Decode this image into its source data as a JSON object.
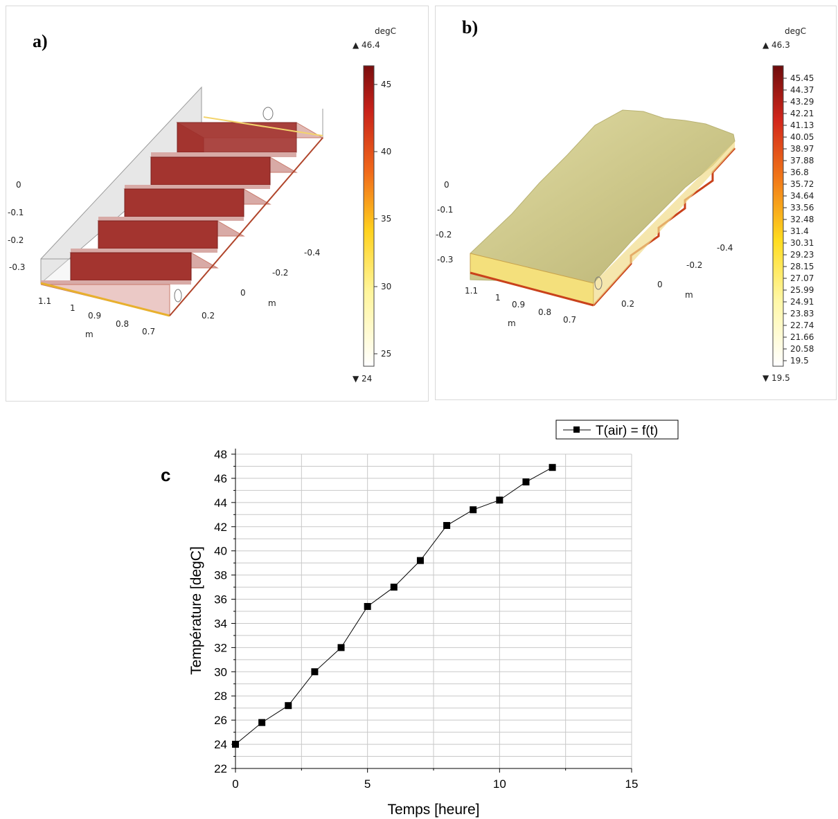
{
  "panel_a": {
    "label": "a)",
    "unit": "degC",
    "max_label": "▲ 46.4",
    "min_label": "▼ 24",
    "colorbar_ticks": [
      "45",
      "40",
      "35",
      "30",
      "25"
    ],
    "axis_labels_z": [
      "0",
      "-0.1",
      "-0.2",
      "-0.3"
    ],
    "axis_labels_x": [
      "1.1",
      "1",
      "0.9",
      "0.8",
      "0.7"
    ],
    "x_unit": "m",
    "axis_labels_y": [
      "0.2",
      "0",
      "-0.2",
      "-0.4"
    ],
    "y_unit": "m"
  },
  "panel_b": {
    "label": "b)",
    "unit": "degC",
    "max_label": "▲ 46.3",
    "min_label": "▼ 19.5",
    "colorbar_ticks": [
      "45.45",
      "44.37",
      "43.29",
      "42.21",
      "41.13",
      "40.05",
      "38.97",
      "37.88",
      "36.8",
      "35.72",
      "34.64",
      "33.56",
      "32.48",
      "31.4",
      "30.31",
      "29.23",
      "28.15",
      "27.07",
      "25.99",
      "24.91",
      "23.83",
      "22.74",
      "21.66",
      "20.58",
      "19.5"
    ],
    "axis_labels_z": [
      "0",
      "-0.1",
      "-0.2",
      "-0.3"
    ],
    "axis_labels_x": [
      "1.1",
      "1",
      "0.9",
      "0.8",
      "0.7"
    ],
    "x_unit": "m",
    "axis_labels_y": [
      "0.2",
      "0",
      "-0.2",
      "-0.4"
    ],
    "y_unit": "m"
  },
  "chart_data": {
    "type": "line",
    "panel_label": "c",
    "xlabel": "Temps [heure]",
    "ylabel": "Température [degC]",
    "xlim": [
      0,
      15
    ],
    "ylim": [
      22,
      48
    ],
    "xticks": [
      0,
      5,
      10,
      15
    ],
    "yticks": [
      22,
      24,
      26,
      28,
      30,
      32,
      34,
      36,
      38,
      40,
      42,
      44,
      46,
      48
    ],
    "grid": true,
    "legend_position": "top-right",
    "series": [
      {
        "name": "T(air) = f(t)",
        "x": [
          0,
          1,
          2,
          3,
          4,
          5,
          6,
          7,
          8,
          9,
          10,
          11,
          12
        ],
        "y": [
          24.0,
          25.8,
          27.2,
          30.0,
          32.0,
          35.4,
          37.0,
          39.2,
          42.1,
          43.4,
          44.2,
          45.7,
          46.9
        ]
      }
    ]
  },
  "colors": {
    "series": "#000000",
    "grid": "#c8c8c8",
    "stair_dark": "#a0312f",
    "stair_light": "#d7a3a0",
    "plate": "#d3cf94"
  }
}
